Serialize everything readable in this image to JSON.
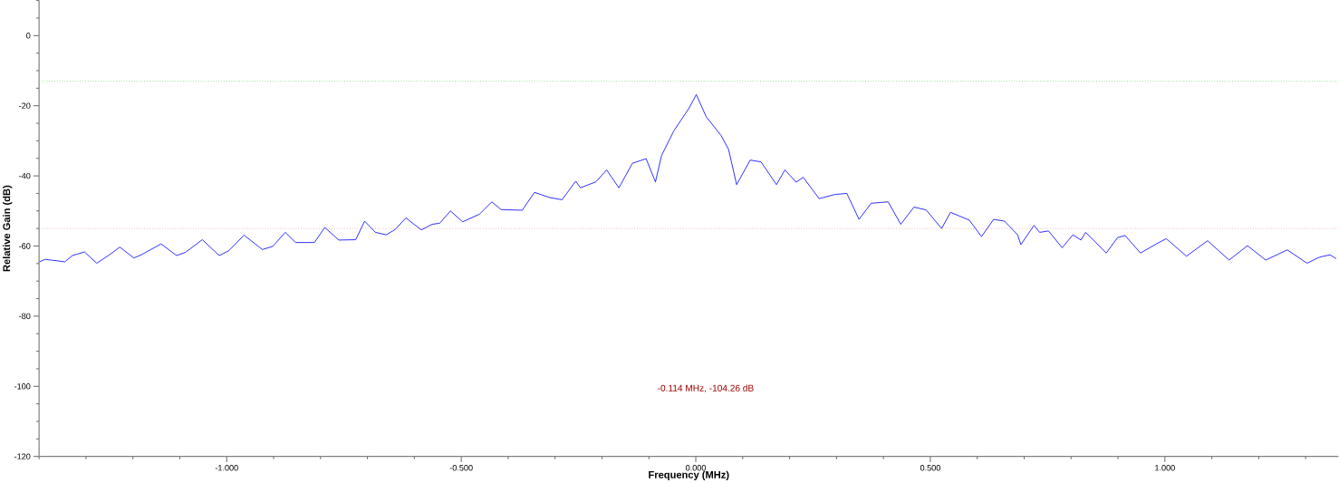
{
  "chart_data": {
    "type": "line",
    "xlabel": "Frequency (MHz)",
    "ylabel": "Relative Gain (dB)",
    "xlim": [
      -1.4,
      1.37
    ],
    "ylim": [
      -120,
      10
    ],
    "xticks": [
      {
        "value": -1.4,
        "label": null
      },
      {
        "value": -1.3,
        "label": null
      },
      {
        "value": -1.2,
        "label": null
      },
      {
        "value": -1.1,
        "label": null
      },
      {
        "value": -1.0,
        "label": "-1.000"
      },
      {
        "value": -0.9,
        "label": null
      },
      {
        "value": -0.8,
        "label": null
      },
      {
        "value": -0.7,
        "label": null
      },
      {
        "value": -0.6,
        "label": null
      },
      {
        "value": -0.5,
        "label": "-0.500"
      },
      {
        "value": -0.4,
        "label": null
      },
      {
        "value": -0.3,
        "label": null
      },
      {
        "value": -0.2,
        "label": null
      },
      {
        "value": -0.1,
        "label": null
      },
      {
        "value": 0,
        "label": "0.000"
      },
      {
        "value": 0.1,
        "label": null
      },
      {
        "value": 0.2,
        "label": null
      },
      {
        "value": 0.3,
        "label": null
      },
      {
        "value": 0.4,
        "label": null
      },
      {
        "value": 0.5,
        "label": "0.500"
      },
      {
        "value": 0.6,
        "label": null
      },
      {
        "value": 0.7,
        "label": null
      },
      {
        "value": 0.8,
        "label": null
      },
      {
        "value": 0.9,
        "label": null
      },
      {
        "value": 1.0,
        "label": "1.000"
      },
      {
        "value": 1.1,
        "label": null
      },
      {
        "value": 1.2,
        "label": null
      },
      {
        "value": 1.3,
        "label": null
      }
    ],
    "yticks": [
      -120,
      {
        "value": -115,
        "label": null
      },
      {
        "value": -110,
        "label": null
      },
      {
        "value": -105,
        "label": null
      },
      -100,
      {
        "value": -95,
        "label": null
      },
      {
        "value": -90,
        "label": null
      },
      {
        "value": -85,
        "label": null
      },
      -80,
      {
        "value": -75,
        "label": null
      },
      {
        "value": -70,
        "label": null
      },
      {
        "value": -65,
        "label": null
      },
      -60,
      {
        "value": -55,
        "label": null
      },
      {
        "value": -50,
        "label": null
      },
      {
        "value": -45,
        "label": null
      },
      -40,
      {
        "value": -35,
        "label": null
      },
      {
        "value": -30,
        "label": null
      },
      {
        "value": -25,
        "label": null
      },
      -20,
      {
        "value": -15,
        "label": null
      },
      {
        "value": -10,
        "label": null
      },
      {
        "value": -5,
        "label": null
      },
      0,
      {
        "value": 5,
        "label": null
      },
      {
        "value": 10,
        "label": null
      }
    ],
    "marker": "none",
    "line_style": "solid",
    "ref_lines": [
      {
        "axis": "y",
        "value": -13,
        "color": "#5fd35f",
        "line_style": "dotted"
      },
      {
        "axis": "y",
        "value": -55,
        "color": "#c04040",
        "line_style": "dotted"
      }
    ],
    "annotations": [
      "-0.114 MHz, -104.26 dB"
    ],
    "series": [
      {
        "color": "#0000ff",
        "x": [
          -1.399,
          -1.387,
          -1.345,
          -1.329,
          -1.303,
          -1.277,
          -1.25,
          -1.228,
          -1.198,
          -1.182,
          -1.14,
          -1.107,
          -1.088,
          -1.052,
          -1.016,
          -0.996,
          -0.963,
          -0.924,
          -0.902,
          -0.875,
          -0.853,
          -0.813,
          -0.791,
          -0.761,
          -0.725,
          -0.706,
          -0.683,
          -0.66,
          -0.641,
          -0.618,
          -0.585,
          -0.562,
          -0.546,
          -0.523,
          -0.497,
          -0.461,
          -0.435,
          -0.415,
          -0.37,
          -0.344,
          -0.311,
          -0.285,
          -0.256,
          -0.246,
          -0.213,
          -0.19,
          -0.164,
          -0.135,
          -0.106,
          -0.086,
          -0.073,
          -0.047,
          -0.014,
          0.001,
          0.022,
          0.054,
          0.07,
          0.087,
          0.116,
          0.139,
          0.172,
          0.19,
          0.214,
          0.229,
          0.263,
          0.296,
          0.322,
          0.348,
          0.374,
          0.41,
          0.437,
          0.465,
          0.491,
          0.524,
          0.543,
          0.583,
          0.609,
          0.635,
          0.658,
          0.686,
          0.693,
          0.721,
          0.733,
          0.752,
          0.781,
          0.804,
          0.821,
          0.831,
          0.866,
          0.875,
          0.899,
          0.915,
          0.948,
          0.987,
          1.003,
          1.046,
          1.091,
          1.137,
          1.176,
          1.215,
          1.261,
          1.303,
          1.329,
          1.352,
          1.365
        ],
        "values": [
          -64.5,
          -63.8,
          -64.5,
          -62.7,
          -61.7,
          -64.9,
          -62.5,
          -60.3,
          -63.4,
          -62.5,
          -59.4,
          -62.7,
          -61.8,
          -58.2,
          -62.7,
          -61.4,
          -56.9,
          -61.0,
          -60.1,
          -56.1,
          -59.0,
          -59.0,
          -54.7,
          -58.3,
          -58.2,
          -52.9,
          -56.1,
          -56.8,
          -55.3,
          -52.0,
          -55.4,
          -53.8,
          -53.5,
          -50.0,
          -53.1,
          -50.9,
          -47.4,
          -49.6,
          -49.8,
          -44.7,
          -46.2,
          -46.8,
          -41.5,
          -43.4,
          -41.7,
          -38.3,
          -43.4,
          -36.4,
          -35.1,
          -41.7,
          -34.2,
          -27.2,
          -20.6,
          -16.8,
          -23.1,
          -28.5,
          -32.5,
          -42.5,
          -35.5,
          -36.0,
          -42.5,
          -38.3,
          -41.8,
          -40.4,
          -46.5,
          -45.3,
          -45.0,
          -52.4,
          -47.8,
          -47.4,
          -53.8,
          -48.9,
          -49.7,
          -55.0,
          -50.4,
          -52.6,
          -57.3,
          -52.4,
          -52.9,
          -56.8,
          -59.6,
          -54.1,
          -56.1,
          -55.7,
          -60.5,
          -56.8,
          -58.3,
          -56.1,
          -60.8,
          -62.0,
          -57.6,
          -57.0,
          -62.0,
          -59.0,
          -57.9,
          -62.9,
          -58.5,
          -64.0,
          -59.9,
          -64.0,
          -61.1,
          -64.9,
          -63.2,
          -62.5,
          -63.6
        ]
      }
    ]
  }
}
